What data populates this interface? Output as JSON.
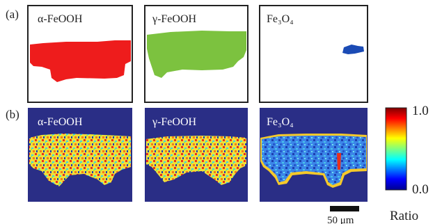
{
  "figure": {
    "row_a_label": "(a)",
    "row_b_label": "(b)",
    "panel_titles": [
      "α-FeOOH",
      "γ-FeOOH",
      "Fe₃O₄"
    ],
    "colorbar": {
      "max_label": "1.0",
      "min_label": "0.0",
      "title": "Ratio"
    },
    "scale_bar_label": "50 μm"
  },
  "colors": {
    "alpha_feooh": "#ee1c1c",
    "gamma_feooh": "#7cc23f",
    "fe3o4": "#1b4bb5",
    "map_background": "#2a2e86"
  }
}
